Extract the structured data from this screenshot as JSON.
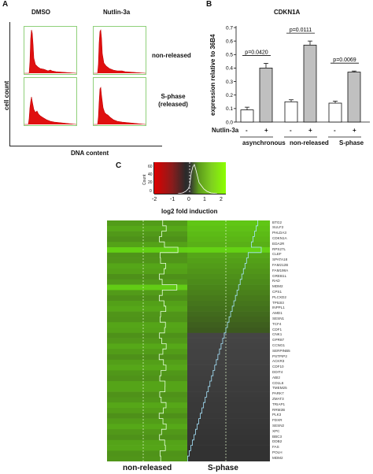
{
  "panel_a": {
    "letter": "A",
    "col_labels": [
      "DMSO",
      "Nutlin-3a"
    ],
    "row_labels": [
      "non-released",
      "S-phase\n(released)"
    ],
    "ylabel": "cell count",
    "xlabel": "DNA content"
  },
  "panel_b": {
    "letter": "B",
    "title": "CDKN1A",
    "ylabel": "expression relative to 36B4",
    "treatment_label": "Nutlin-3a",
    "treatment_signs": [
      "-",
      "+",
      "-",
      "+",
      "-",
      "+"
    ],
    "groups": [
      "asynchronous",
      "non-released",
      "S-phase"
    ],
    "pvalues": [
      "p=0.0420",
      "p=0.0111",
      "p=0.0069"
    ]
  },
  "panel_c": {
    "letter": "C",
    "colorbar_label": "log2 fold induction",
    "colorbar_ticks": [
      "-2",
      "-1",
      "0",
      "1",
      "2"
    ],
    "count_axis_ticks": [
      "0",
      "20",
      "40",
      "60"
    ],
    "count_axis_label": "Count",
    "columns": [
      "non-released",
      "S-phase"
    ],
    "genes": [
      "BTG2",
      "SULF2",
      "PHLDA3",
      "CDKN1A",
      "EDA2R",
      "RPS27L",
      "CLEF",
      "SPATA18",
      "FAM212B",
      "FAM198A",
      "GREB1L",
      "RAD",
      "MDM2",
      "CPS1",
      "PLCXD2",
      "TP53I3",
      "INPPL1",
      "AMD1",
      "SESN1",
      "TCF4",
      "CDF1",
      "CNK1",
      "GPR87",
      "CCNG1",
      "SERPINB5",
      "PSTPIP2",
      "ACKR3",
      "CDF10",
      "DDIT4",
      "ABI2",
      "CD1L6",
      "TMEM25",
      "PARK7",
      "ZMAT3",
      "TRIAP1",
      "RRM2B",
      "PLK3",
      "FDXR",
      "SESN2",
      "XPC",
      "BBC3",
      "DDB2",
      "FAS",
      "POLH",
      "MDM2"
    ]
  },
  "chart_data": [
    {
      "type": "bar",
      "title": "CDKN1A",
      "ylabel": "expression relative to 36B4",
      "categories": [
        "asynchronous -",
        "asynchronous +",
        "non-released -",
        "non-released +",
        "S-phase -",
        "S-phase +"
      ],
      "values": [
        0.09,
        0.4,
        0.15,
        0.57,
        0.14,
        0.37
      ],
      "errors": [
        0.02,
        0.035,
        0.015,
        0.03,
        0.015,
        0.008
      ],
      "bar_colors": [
        "#ffffff",
        "#c0c0c0",
        "#ffffff",
        "#c0c0c0",
        "#ffffff",
        "#c0c0c0"
      ],
      "ylim": [
        0,
        0.7
      ],
      "yticks": [
        "0.0",
        "0.1",
        "0.2",
        "0.3",
        "0.4",
        "0.5",
        "0.6",
        "0.7"
      ]
    }
  ]
}
